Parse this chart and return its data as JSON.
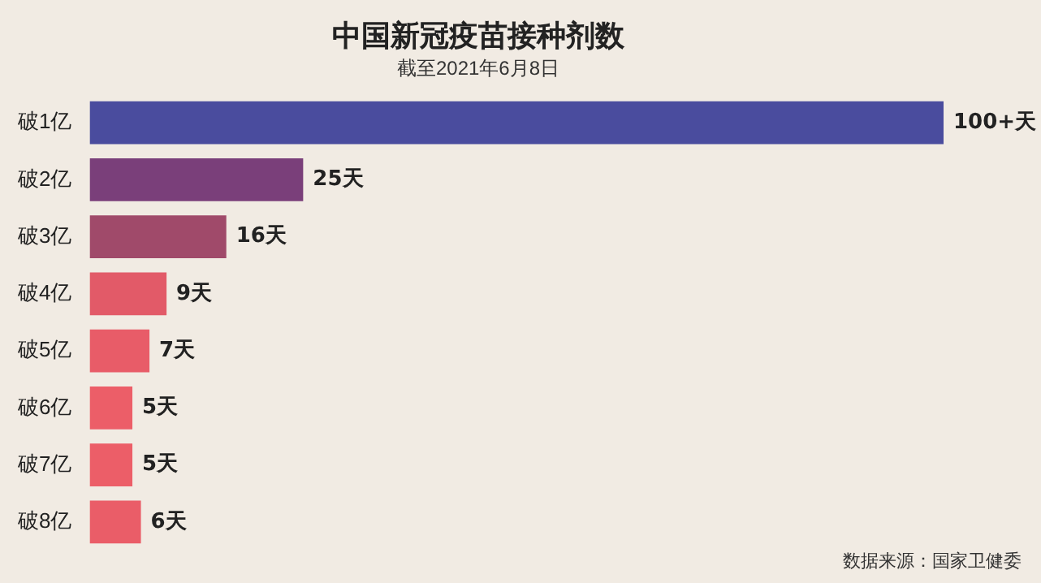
{
  "chart_data": {
    "type": "bar",
    "orientation": "horizontal",
    "title": "中国新冠疫苗接种剂数",
    "subtitle": "截至2021年6月8日",
    "categories": [
      "破1亿",
      "破2亿",
      "破3亿",
      "破4亿",
      "破5亿",
      "破6亿",
      "破7亿",
      "破8亿"
    ],
    "values": [
      100,
      25,
      16,
      9,
      7,
      5,
      5,
      6
    ],
    "value_labels": [
      "100+天",
      "25天",
      "16天",
      "9天",
      "7天",
      "5天",
      "5天",
      "6天"
    ],
    "colors": [
      "#4a4c9e",
      "#7a3f7a",
      "#a04a6a",
      "#e25a68",
      "#e85c68",
      "#ec5e68",
      "#ec5e68",
      "#ea5d68"
    ],
    "tick_labels": "y",
    "annotations": [
      "数据来源：国家卫健委"
    ]
  }
}
